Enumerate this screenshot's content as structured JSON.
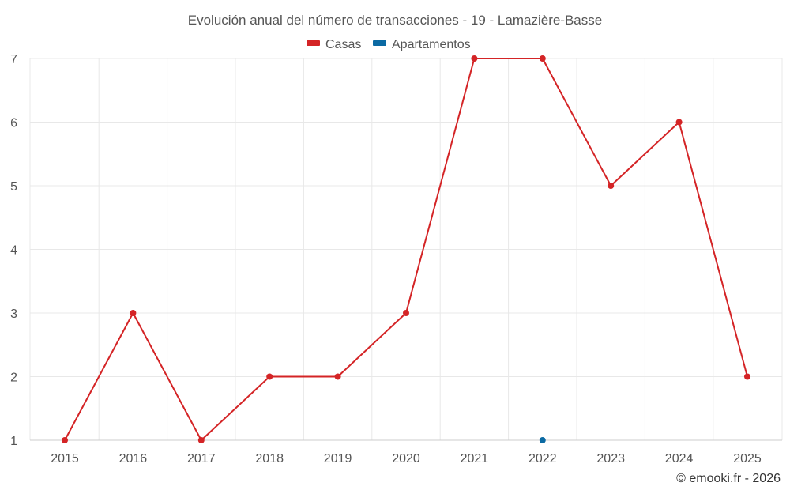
{
  "chart_data": {
    "type": "line",
    "title": "Evolución anual del número de transacciones - 19 - Lamazière-Basse",
    "categories": [
      "2015",
      "2016",
      "2017",
      "2018",
      "2019",
      "2020",
      "2021",
      "2022",
      "2023",
      "2024",
      "2025"
    ],
    "series": [
      {
        "name": "Casas",
        "color": "#d42426",
        "values": [
          1,
          3,
          1,
          2,
          2,
          3,
          7,
          7,
          5,
          6,
          2
        ]
      },
      {
        "name": "Apartamentos",
        "color": "#0b6aa3",
        "values": [
          null,
          null,
          null,
          null,
          null,
          null,
          null,
          1,
          null,
          null,
          null
        ]
      }
    ],
    "y_ticks": [
      "1",
      "2",
      "3",
      "4",
      "5",
      "6",
      "7"
    ],
    "ylim": [
      1,
      7
    ],
    "xlabel": "",
    "ylabel": "",
    "legend_position": "top-center",
    "grid": true
  },
  "credit": "© emooki.fr - 2026"
}
